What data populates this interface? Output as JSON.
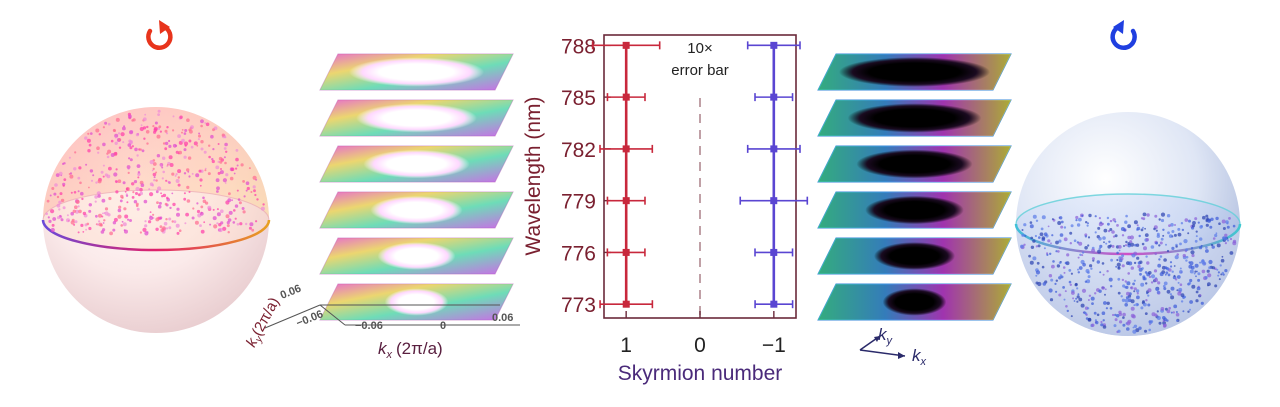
{
  "chart_data": {
    "type": "scatter",
    "xlabel": "Skyrmion number",
    "ylabel": "Wavelength (nm)",
    "xticks": [
      "1",
      "0",
      "−1"
    ],
    "xtick_values": [
      1,
      0,
      -1
    ],
    "yticks": [
      "773",
      "776",
      "779",
      "782",
      "785",
      "788"
    ],
    "ytick_values": [
      773,
      776,
      779,
      782,
      785,
      788
    ],
    "xlim": [
      1.3,
      -1.3
    ],
    "ylim": [
      772.2,
      788.6
    ],
    "annotation": "10×\nerror bar",
    "series": [
      {
        "color": "#c8283c",
        "points": [
          {
            "x": 0.999,
            "y": 773,
            "xerr": 0.03
          },
          {
            "x": 1.0,
            "y": 776,
            "xerr": 0.02
          },
          {
            "x": 0.999,
            "y": 779,
            "xerr": 0.02
          },
          {
            "x": 1.0,
            "y": 782,
            "xerr": 0.03
          },
          {
            "x": 0.999,
            "y": 785,
            "xerr": 0.02
          },
          {
            "x": 1.0,
            "y": 788,
            "xerr": 0.04
          }
        ]
      },
      {
        "color": "#5a46d2",
        "points": [
          {
            "x": -1.0,
            "y": 773,
            "xerr": 0.02
          },
          {
            "x": -0.999,
            "y": 776,
            "xerr": 0.02
          },
          {
            "x": -0.999,
            "y": 779,
            "xerr": 0.04
          },
          {
            "x": -1.0,
            "y": 782,
            "xerr": 0.03
          },
          {
            "x": -0.999,
            "y": 785,
            "xerr": 0.02
          },
          {
            "x": -1.0,
            "y": 788,
            "xerr": 0.03
          }
        ]
      }
    ],
    "zero_line": 0
  },
  "left_panel": {
    "axis_ky_label": "k",
    "axis_ky_sub": "y",
    "axis_ky_unit": "(2π/a)",
    "ky_ticks": [
      "0.06",
      "−0.06"
    ],
    "axis_kx_label": "k",
    "axis_kx_sub": "x",
    "axis_kx_unit": "(2π/a)",
    "kx_ticks": [
      "−0.06",
      "0",
      "0.06"
    ]
  },
  "right_panel": {
    "ky_label": "k",
    "ky_sub": "y",
    "kx_label": "k",
    "kx_sub": "x"
  },
  "colors": {
    "left_circular": "#e8341c",
    "right_circular": "#1f3fe0",
    "frame": "#6a2a3a",
    "axis_text": "#7a2030",
    "xlabel_text": "#4a2a7a"
  },
  "icons": [
    "counterclockwise-arrow-icon",
    "clockwise-arrow-icon"
  ]
}
